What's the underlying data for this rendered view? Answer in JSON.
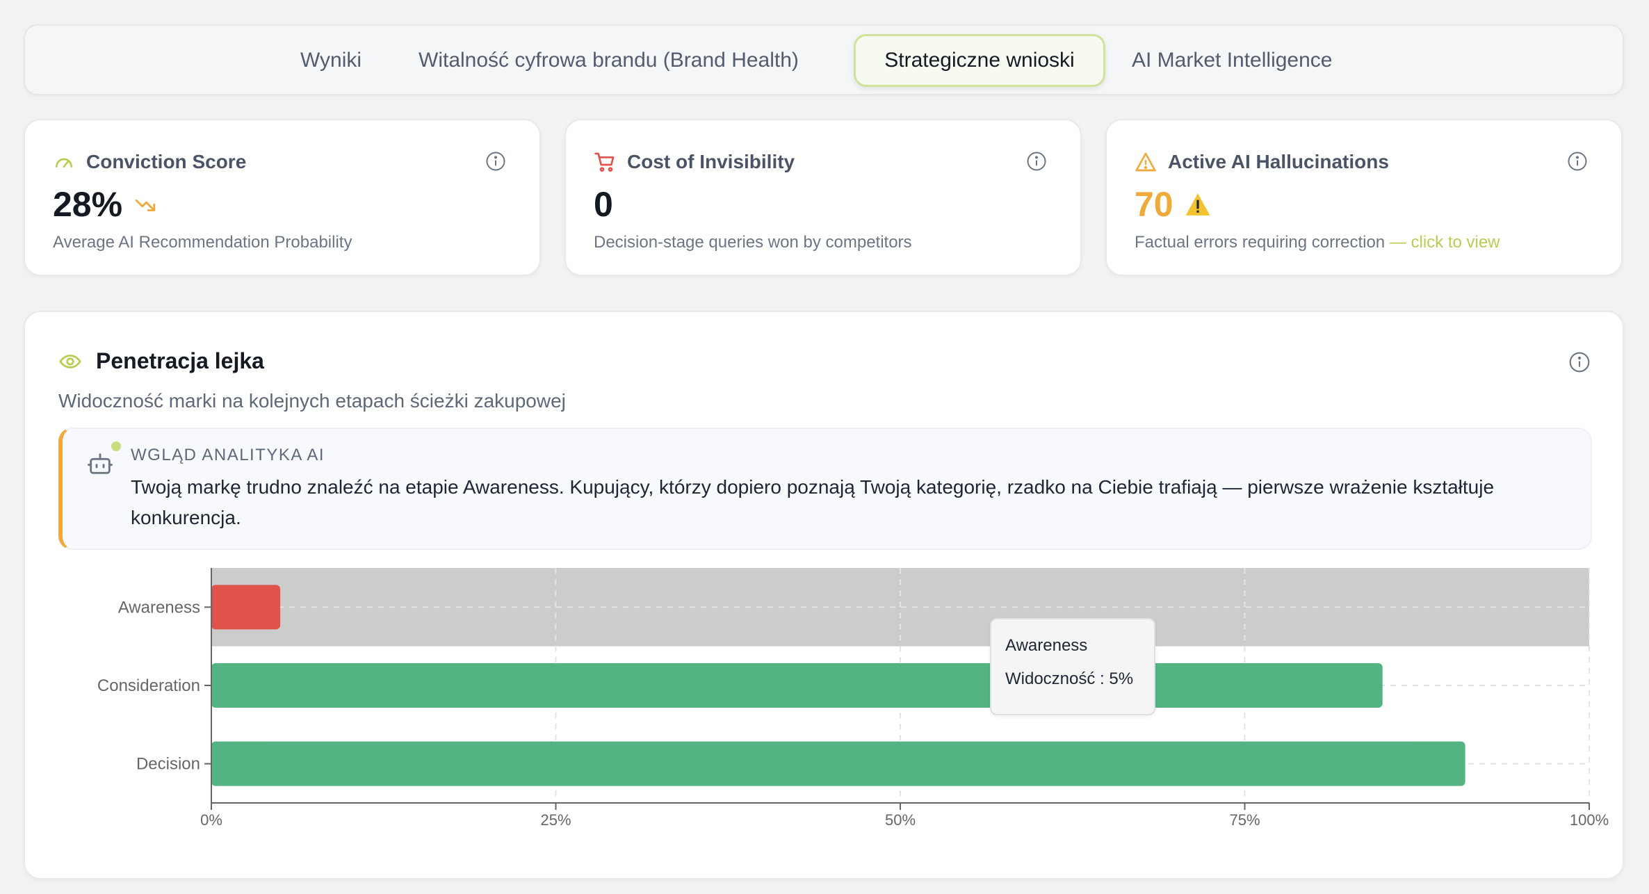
{
  "tabs": [
    {
      "label": "Wyniki"
    },
    {
      "label": "Witalność cyfrowa brandu (Brand Health)"
    },
    {
      "label": "Strategiczne wnioski"
    },
    {
      "label": "AI Market Intelligence"
    }
  ],
  "cards": [
    {
      "title": "Conviction Score",
      "value": "28%",
      "subtitle": "Average AI Recommendation Probability",
      "icon": "gauge-icon",
      "color": "#b5cf52"
    },
    {
      "title": "Cost of Invisibility",
      "value": "0",
      "subtitle": "Decision-stage queries won by competitors",
      "icon": "cart-icon",
      "color": "#e0534a"
    },
    {
      "title": "Active AI Hallucinations",
      "value": "70",
      "subtitle": "Factual errors requiring correction",
      "link": "— click to view",
      "icon": "warning-icon",
      "color": "#f0a93b"
    }
  ],
  "funnel": {
    "title": "Penetracja lejka",
    "subtitle": "Widoczność marki na kolejnych etapach ścieżki zakupowej",
    "insight_label": "WGLĄD ANALITYKA AI",
    "insight_text": "Twoją markę trudno znaleźć na etapie Awareness. Kupujący, którzy dopiero poznają Twoją kategorię, rzadko na Ciebie trafiają — pierwsze wrażenie kształtuje konkurencja."
  },
  "chart_data": {
    "type": "bar",
    "orientation": "horizontal",
    "categories": [
      "Awareness",
      "Consideration",
      "Decision"
    ],
    "values": [
      5,
      85,
      91
    ],
    "colors": [
      "#e0534a",
      "#54b382",
      "#54b382"
    ],
    "xlim": [
      0,
      100
    ],
    "xticks": [
      "0%",
      "25%",
      "50%",
      "75%",
      "100%"
    ],
    "grid": true,
    "highlighted": "Awareness"
  },
  "tooltip": {
    "title": "Awareness",
    "value": "Widoczność : 5%"
  }
}
